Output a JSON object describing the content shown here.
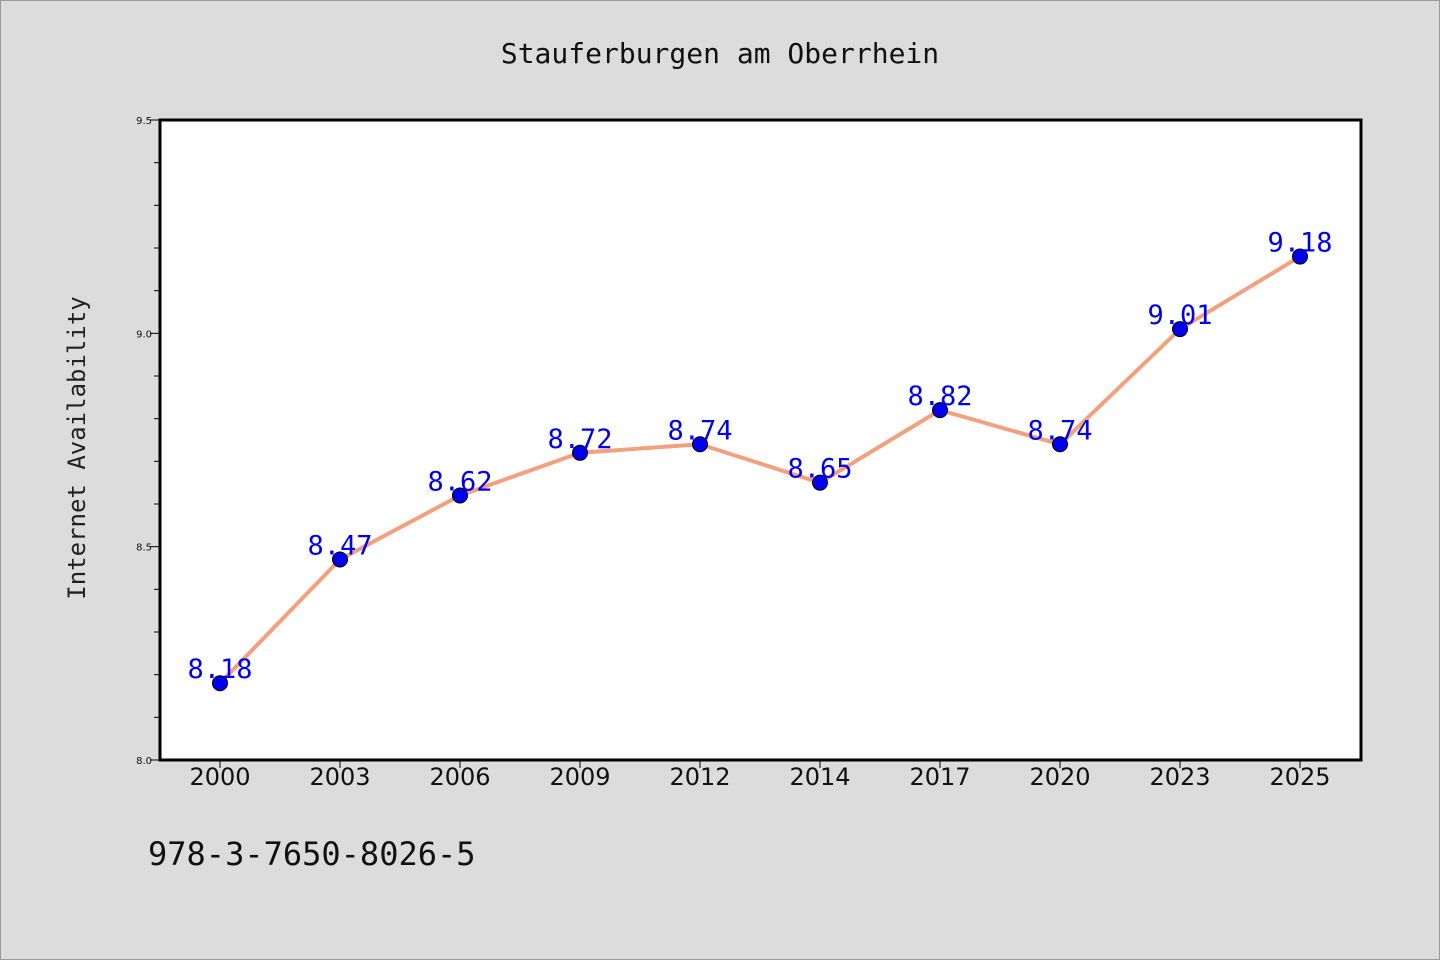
{
  "chart_data": {
    "type": "line",
    "title": "Stauferburgen am Oberrhein",
    "xlabel": "",
    "ylabel": "Internet Availability",
    "categories": [
      "2000",
      "2003",
      "2006",
      "2009",
      "2012",
      "2014",
      "2017",
      "2020",
      "2023",
      "2025"
    ],
    "series": [
      {
        "values": [
          8.18,
          8.47,
          8.62,
          8.72,
          8.74,
          8.65,
          8.82,
          8.74,
          9.01,
          9.18
        ],
        "data_labels": [
          "8.18",
          "8.47",
          "8.62",
          "8.72",
          "8.74",
          "8.65",
          "8.82",
          "8.74",
          "9.01",
          "9.18"
        ]
      }
    ],
    "ylim": [
      8.0,
      9.5
    ],
    "yticks": [
      "8.0",
      "8.5",
      "9.0",
      "9.5"
    ],
    "grid": false,
    "legend": "none",
    "colors": {
      "line": "#f4a07f",
      "marker": "#0000ee",
      "data_label": "#0000ee",
      "plot_background": "#ffffff",
      "figure_background": "#dcdcdc"
    }
  },
  "footer": {
    "isbn": "978-3-7650-8026-5"
  }
}
